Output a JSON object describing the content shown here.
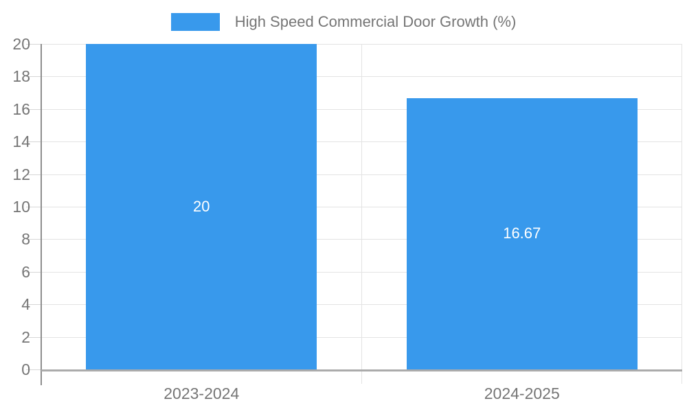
{
  "chart_data": {
    "type": "bar",
    "categories": [
      "2023-2024",
      "2024-2025"
    ],
    "values": [
      20,
      16.67
    ],
    "bar_labels": [
      "20",
      "16.67"
    ],
    "legend_label": "High Speed Commercial Door Growth (%)",
    "legend_position": "top",
    "title": "",
    "xlabel": "",
    "ylabel": "",
    "ylim": [
      0,
      20
    ],
    "ytick_step": 2,
    "ytick_labels": [
      "0",
      "2",
      "4",
      "6",
      "8",
      "10",
      "12",
      "14",
      "16",
      "18",
      "20"
    ],
    "grid": true,
    "colors": {
      "bar": "#3899ec",
      "bar_label": "#ffffff",
      "gridline": "#e3e3e3",
      "tick_mark": "#d6d6d6",
      "axis_line": "#8e8e8e",
      "baseline": "#ababab",
      "tick_label": "#757575",
      "legend_text": "#757575",
      "background": "#ffffff"
    }
  }
}
